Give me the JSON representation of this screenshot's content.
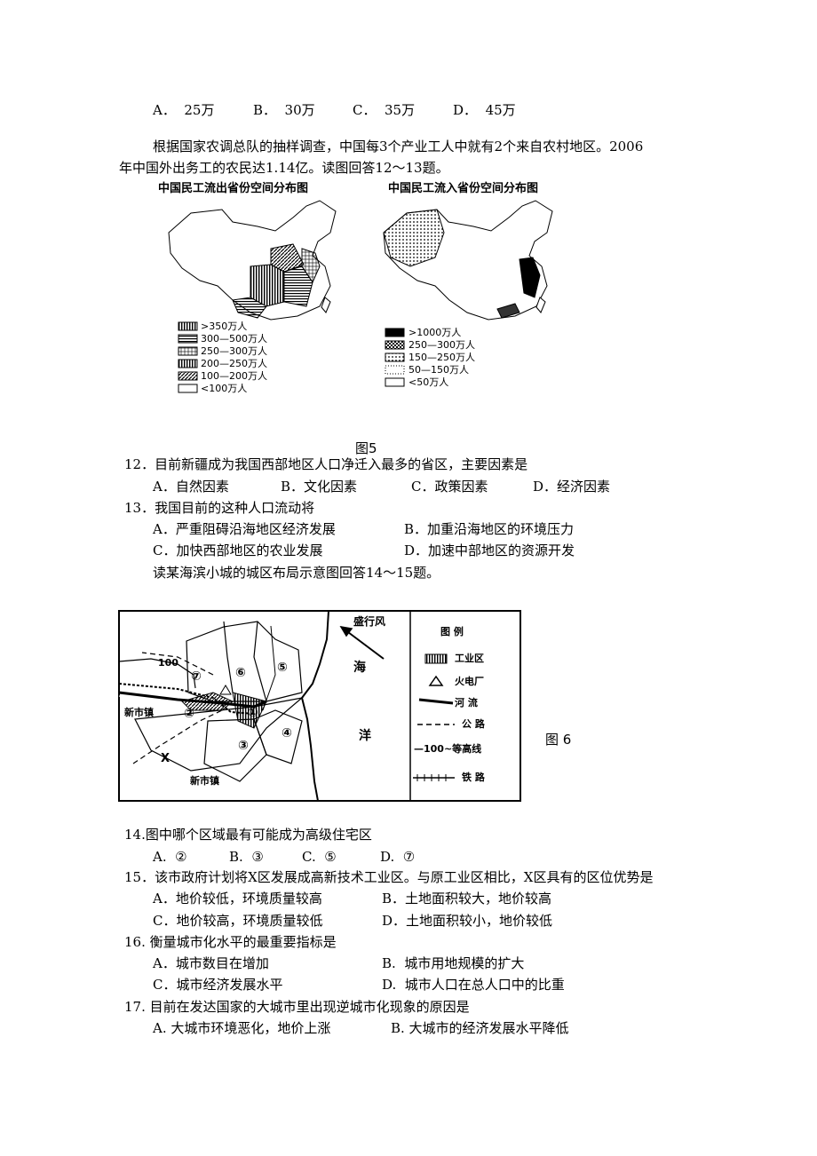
{
  "q11": {
    "options": [
      "A．  25万",
      "B．  30万",
      "C．  35万",
      "D．  45万"
    ]
  },
  "intro_12_13": [
    "根据国家农调总队的抽样调查，中国每3个产业工人中就有2个来自农村地区。2006",
    "年中国外出务工的农民达1.14亿。读图回答12～13题。"
  ],
  "figure5": {
    "map_out": {
      "title": "中国民工流出省份空间分布图",
      "legend": [
        ">350万人",
        "300—500万人",
        "250—300万人",
        "200—250万人",
        "100—200万人",
        "<100万人"
      ]
    },
    "map_in": {
      "title": "中国民工流入省份空间分布图",
      "legend": [
        ">1000万人",
        "250—300万人",
        "150—250万人",
        "50—150万人",
        "<50万人"
      ]
    },
    "caption": "图5"
  },
  "q12": {
    "stem": "12．目前新疆成为我国西部地区人口净迁入最多的省区，主要因素是",
    "options": [
      "A．自然因素",
      "B．文化因素",
      "C．政策因素",
      "D．经济因素"
    ]
  },
  "q13": {
    "stem": "13．我国目前的这种人口流动将",
    "options": [
      "A．严重阻碍沿海地区经济发展",
      "B．加重沿海地区的环境压力",
      "C．加快西部地区的农业发展",
      "D．加速中部地区的资源开发"
    ]
  },
  "intro_14_15": "读某海滨小城的城区布局示意图回答14～15题。",
  "figure6": {
    "map_labels": {
      "wind": "盛行风",
      "sea1": "海",
      "sea2": "洋",
      "town1": "新市镇",
      "town2": "新市镇",
      "x": "X",
      "contour": "100",
      "zones": [
        "①",
        "②",
        "③",
        "④",
        "⑤",
        "⑥",
        "⑦"
      ]
    },
    "legend_title": "图 例",
    "legend": [
      "工业区",
      "火电厂",
      "河 流",
      "公 路",
      "—100~等高线",
      "铁 路"
    ],
    "caption": "图 6"
  },
  "q14": {
    "stem": "14.图中哪个区域最有可能成为高级住宅区",
    "options": [
      "A.  ②",
      "B.  ③",
      "C.  ⑤",
      "D.  ⑦"
    ]
  },
  "q15": {
    "stem": "15．该市政府计划将X区发展成高新技术工业区。与原工业区相比，X区具有的区位优势是",
    "options": [
      "A．地价较低，环境质量较高",
      "B．土地面积较大，地价较高",
      "C．地价较高，环境质量较低",
      "D．土地面积较小，地价较低"
    ]
  },
  "q16": {
    "stem": "16. 衡量城市化水平的最重要指标是",
    "options": [
      "A．城市数目在增加",
      "B.  城市用地规模的扩大",
      "C．城市经济发展水平",
      "D.  城市人口在总人口中的比重"
    ]
  },
  "q17": {
    "stem": "17. 目前在发达国家的大城市里出现逆城市化现象的原因是",
    "options": [
      "A. 大城市环境恶化，地价上涨",
      "B. 大城市的经济发展水平降低"
    ]
  }
}
